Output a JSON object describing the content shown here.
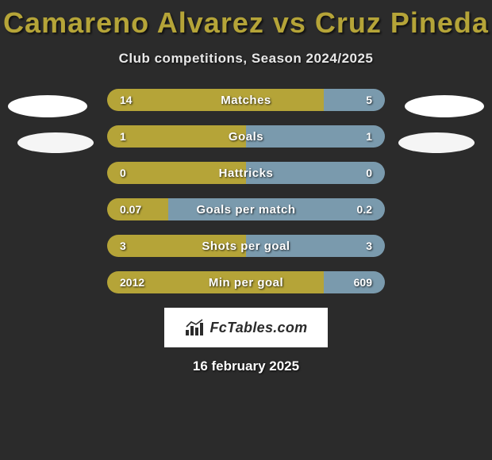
{
  "title": "Camareno Alvarez vs Cruz Pineda",
  "subtitle": "Club competitions, Season 2024/2025",
  "date": "16 february 2025",
  "brand": "FcTables.com",
  "colors": {
    "left_bar": "#b5a438",
    "right_bar": "#7a9aad",
    "background": "#2b2b2b",
    "title": "#b5a438"
  },
  "rows": [
    {
      "label": "Matches",
      "left_val": "14",
      "right_val": "5",
      "left_pct": 78,
      "right_pct": 22
    },
    {
      "label": "Goals",
      "left_val": "1",
      "right_val": "1",
      "left_pct": 50,
      "right_pct": 50
    },
    {
      "label": "Hattricks",
      "left_val": "0",
      "right_val": "0",
      "left_pct": 50,
      "right_pct": 50
    },
    {
      "label": "Goals per match",
      "left_val": "0.07",
      "right_val": "0.2",
      "left_pct": 22,
      "right_pct": 78
    },
    {
      "label": "Shots per goal",
      "left_val": "3",
      "right_val": "3",
      "left_pct": 50,
      "right_pct": 50
    },
    {
      "label": "Min per goal",
      "left_val": "2012",
      "right_val": "609",
      "left_pct": 78,
      "right_pct": 22
    }
  ]
}
